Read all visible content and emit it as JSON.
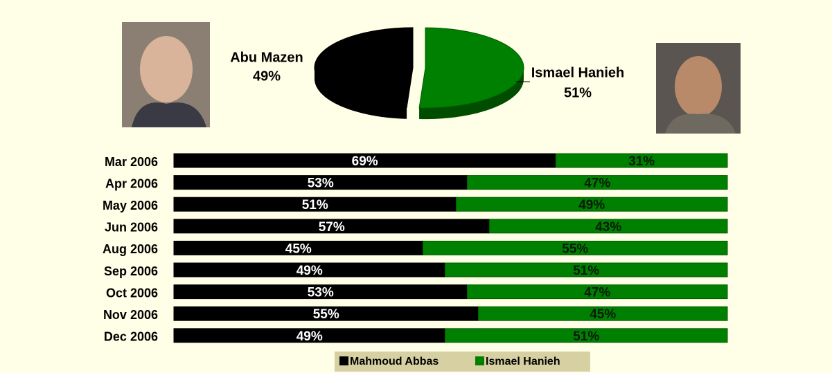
{
  "chart_data": [
    {
      "type": "pie",
      "categories": [
        "Abu Mazen",
        "Ismael Hanieh"
      ],
      "values": [
        49,
        51
      ],
      "value_labels": [
        "49%",
        "51%"
      ],
      "colors": [
        "#000000",
        "#008000"
      ]
    },
    {
      "type": "stacked-bar",
      "orientation": "horizontal",
      "categories": [
        "Mar 2006",
        "Apr 2006",
        "May 2006",
        "Jun 2006",
        "Aug 2006",
        "Sep 2006",
        "Oct 2006",
        "Nov 2006",
        "Dec 2006"
      ],
      "series": [
        {
          "name": "Mahmoud Abbas",
          "color": "#000000",
          "values": [
            69,
            53,
            51,
            57,
            45,
            49,
            53,
            55,
            49
          ],
          "value_labels": [
            "69%",
            "53%",
            "51%",
            "57%",
            "45%",
            "49%",
            "53%",
            "55%",
            "49%"
          ]
        },
        {
          "name": "Ismael Hanieh",
          "color": "#008000",
          "values": [
            31,
            47,
            49,
            43,
            55,
            51,
            47,
            45,
            51
          ],
          "value_labels": [
            "31%",
            "47%",
            "49%",
            "43%",
            "55%",
            "51%",
            "47%",
            "45%",
            "51%"
          ]
        }
      ],
      "xlim": [
        0,
        100
      ],
      "legend": "bottom"
    }
  ]
}
